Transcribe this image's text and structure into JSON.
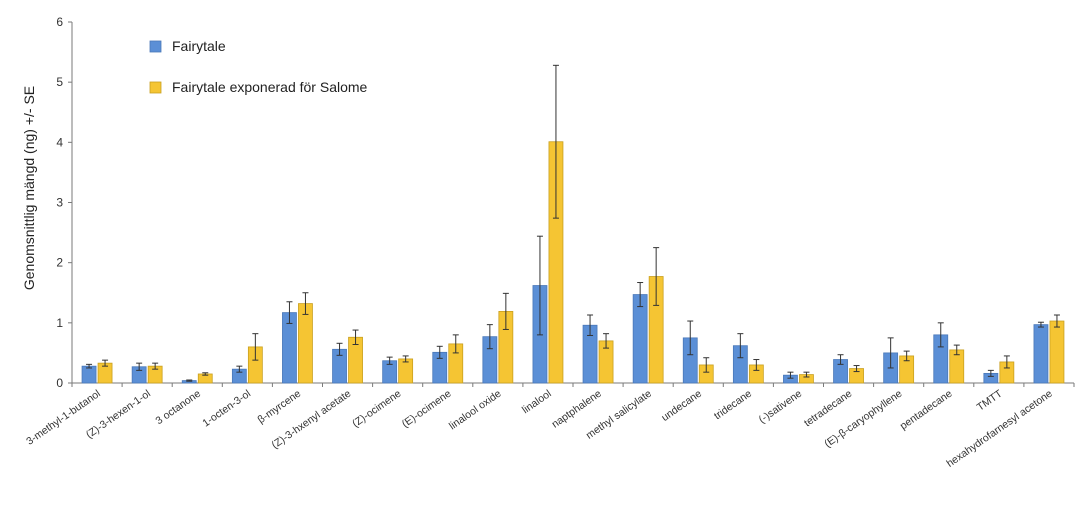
{
  "chart_data": {
    "type": "bar",
    "ylabel": "Genomsnittlig mängd (ng) +/- SE",
    "xlabel": "",
    "ylim": [
      0,
      6
    ],
    "yticks": [
      "0",
      "1",
      "2",
      "3",
      "4",
      "5",
      "6"
    ],
    "grid": false,
    "legend_position": "top-left",
    "categories": [
      "3-methyl-1-butanol",
      "(Z)-3-hexen-1-ol",
      "3 octanone",
      "1-octen-3-ol",
      "β-myrcene",
      "(Z)-3-hxenyl acetate",
      "(Z)-ocimene",
      "(E)-ocimene",
      "linalool oxide",
      "linalool",
      "naptphalene",
      "methyl salicylate",
      "undecane",
      "tridecane",
      "(-)sativene",
      "tetradecane",
      "(E)-β-caryophyllene",
      "pentadecane",
      "TMTT",
      "hexahydrofarnesyl acetone"
    ],
    "series": [
      {
        "name": "Fairytale",
        "color": "#5b8fd6",
        "values": [
          0.28,
          0.27,
          0.04,
          0.23,
          1.17,
          0.56,
          0.37,
          0.51,
          0.77,
          1.62,
          0.96,
          1.47,
          0.75,
          0.62,
          0.13,
          0.39,
          0.5,
          0.8,
          0.16,
          0.97
        ],
        "errors": [
          0.03,
          0.06,
          0.01,
          0.05,
          0.18,
          0.1,
          0.06,
          0.1,
          0.2,
          0.82,
          0.17,
          0.2,
          0.28,
          0.2,
          0.05,
          0.08,
          0.25,
          0.2,
          0.05,
          0.04
        ]
      },
      {
        "name": "Fairytale exponerad för Salome",
        "color": "#f5c533",
        "values": [
          0.33,
          0.28,
          0.15,
          0.6,
          1.32,
          0.76,
          0.4,
          0.65,
          1.19,
          4.01,
          0.7,
          1.77,
          0.3,
          0.3,
          0.14,
          0.24,
          0.45,
          0.55,
          0.35,
          1.03
        ],
        "errors": [
          0.05,
          0.05,
          0.02,
          0.22,
          0.18,
          0.12,
          0.05,
          0.15,
          0.3,
          1.27,
          0.12,
          0.48,
          0.12,
          0.09,
          0.04,
          0.05,
          0.08,
          0.08,
          0.1,
          0.1
        ]
      }
    ]
  }
}
